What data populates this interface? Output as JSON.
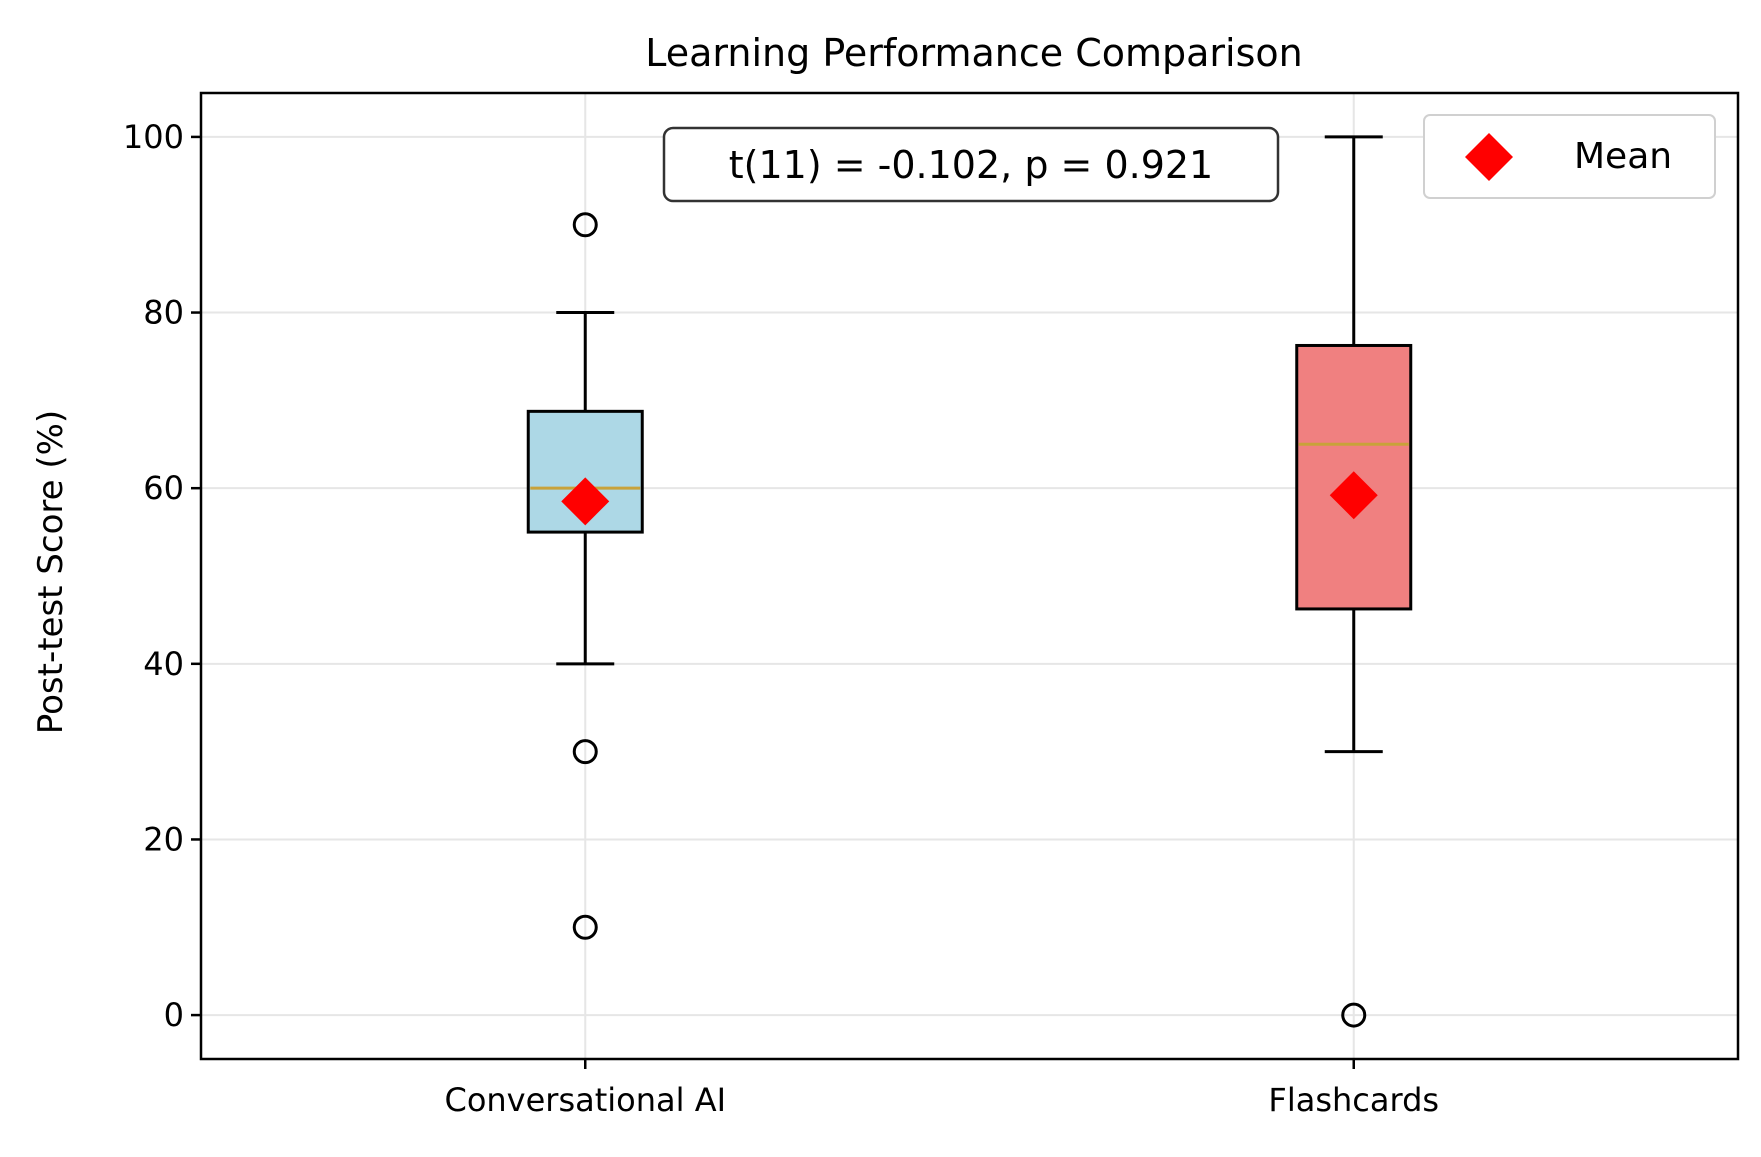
{
  "chart_data": {
    "type": "box",
    "title": "Learning Performance Comparison",
    "xlabel": "",
    "ylabel": "Post-test Score (%)",
    "ylim": [
      -5,
      105
    ],
    "yticks": [
      0,
      20,
      40,
      60,
      80,
      100
    ],
    "grid": true,
    "legend": {
      "position": "upper right",
      "label": "Mean"
    },
    "annotation": "t(11) = -0.102, p = 0.921",
    "categories": [
      "Conversational AI",
      "Flashcards"
    ],
    "series": [
      {
        "category": "Conversational AI",
        "whisker_low": 40,
        "q1": 55,
        "median": 60,
        "q3": 68.75,
        "whisker_high": 80,
        "mean": 58.5,
        "outliers": [
          90,
          30,
          10
        ],
        "color": "#add8e6"
      },
      {
        "category": "Flashcards",
        "whisker_low": 30,
        "q1": 46.25,
        "median": 65,
        "q3": 76.25,
        "whisker_high": 100,
        "mean": 59.2,
        "outliers": [
          0
        ],
        "color": "#f08080"
      }
    ],
    "colors": {
      "median": "#c8a23a",
      "mean": "#ff0000",
      "grid": "#e6e6e6"
    }
  }
}
